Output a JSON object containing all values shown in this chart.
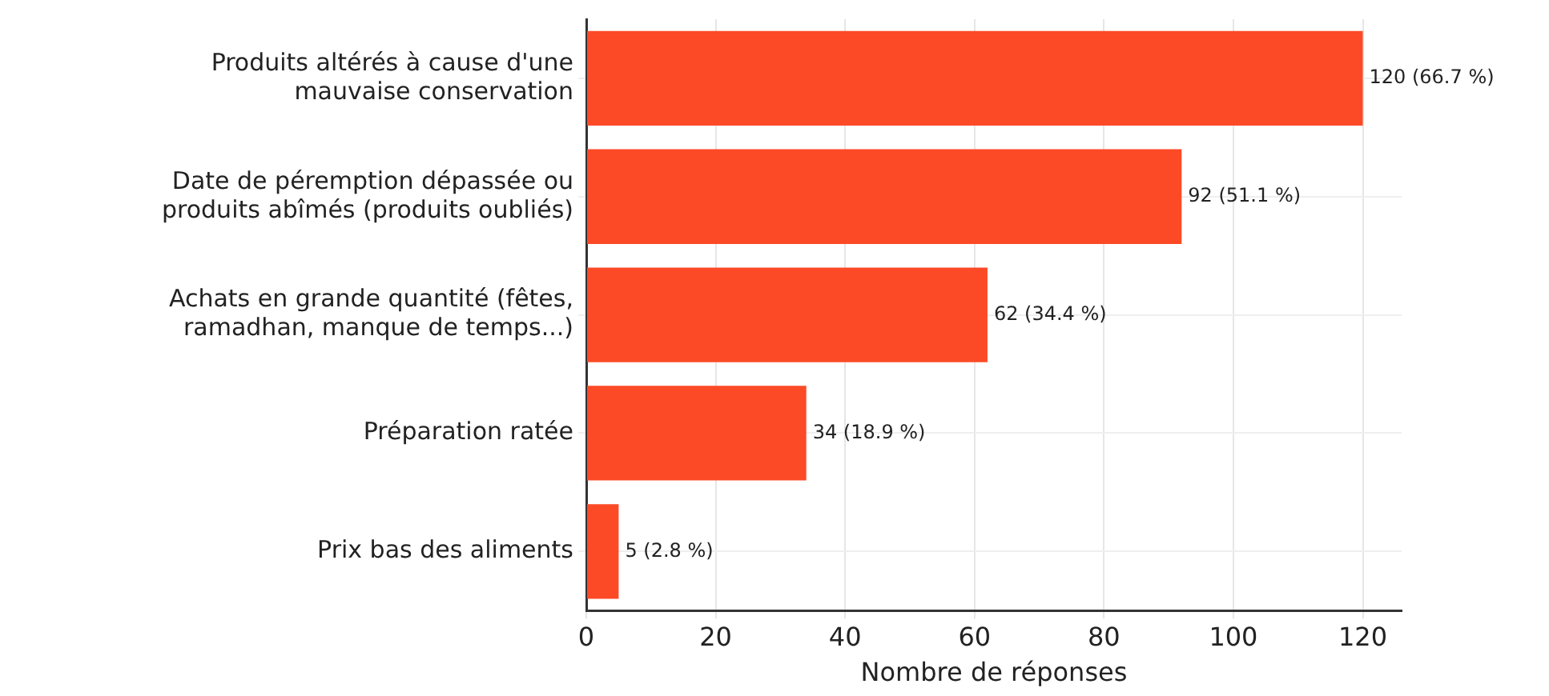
{
  "chart_data": {
    "type": "bar",
    "orientation": "horizontal",
    "xlabel": "Nombre de réponses",
    "categories": [
      "Produits altérés à cause d'une\nmauvaise conservation",
      "Date de péremption dépassée ou\nproduits abîmés (produits oubliés)",
      "Achats en grande quantité (fêtes,\nramadhan, manque de temps...)",
      "Préparation ratée",
      "Prix bas des aliments"
    ],
    "values": [
      120,
      92,
      62,
      34,
      5
    ],
    "value_labels": [
      "120 (66.7 %)",
      "92 (51.1 %)",
      "62 (34.4 %)",
      "34 (18.9 %)",
      "5 (2.8 %)"
    ],
    "color": "#fc4a26",
    "xlim": [
      0,
      126
    ],
    "xticks": [
      0,
      20,
      40,
      60,
      80,
      100,
      120
    ],
    "grid": true,
    "legend": false
  }
}
